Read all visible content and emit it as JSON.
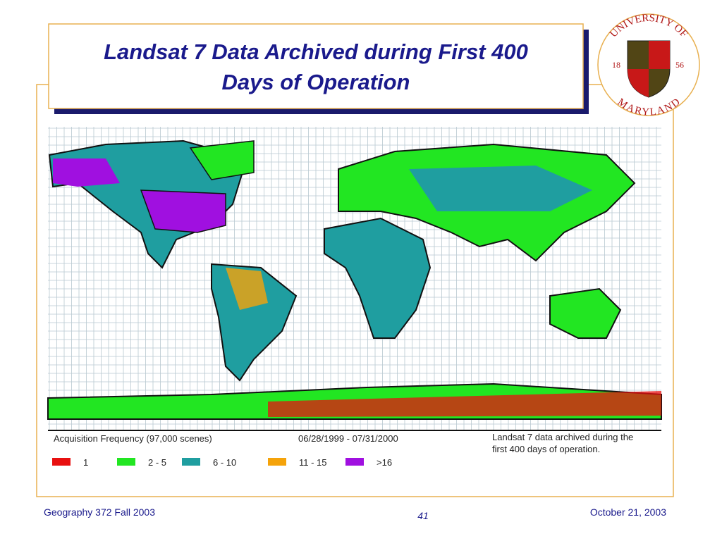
{
  "header": {
    "title_lines": [
      "Landsat 7 Data Archived during First 400",
      "Days of Operation"
    ]
  },
  "logo": {
    "top": "UNIVERSITY OF",
    "bottom": "MARYLAND",
    "left_year": "18",
    "right_year": "56"
  },
  "map": {
    "caption_left": "Acquisition Frequency (97,000 scenes)",
    "caption_dates": "06/28/1999 - 07/31/2000",
    "caption_right_lines": [
      "Landsat 7 data archived during the",
      "first 400 days of operation."
    ],
    "legend": [
      {
        "label": "1",
        "color": "#e81010"
      },
      {
        "label": "2 - 5",
        "color": "#22e622"
      },
      {
        "label": "6 - 10",
        "color": "#1f9ea0"
      },
      {
        "label": "11 - 15",
        "color": "#f5a30a"
      },
      {
        "label": ">16",
        "color": "#a010e0"
      }
    ]
  },
  "footer": {
    "left": "Geography  372 Fall 2003",
    "page": "41",
    "right": "October 21, 2003"
  }
}
